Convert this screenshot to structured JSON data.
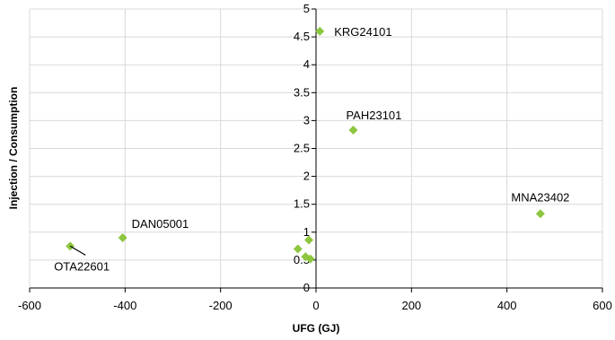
{
  "chart_data": {
    "type": "scatter",
    "title": "",
    "xlabel": "UFG (GJ)",
    "ylabel": "Injection / Consumption",
    "xlim": [
      -600,
      600
    ],
    "ylim": [
      0,
      5
    ],
    "x_ticks": [
      -600,
      -400,
      -200,
      0,
      200,
      400,
      600
    ],
    "y_ticks": [
      0,
      0.5,
      1,
      1.5,
      2,
      2.5,
      3,
      3.5,
      4,
      4.5,
      5
    ],
    "x_tick_labels": [
      "-600",
      "-400",
      "-200",
      "0",
      "200",
      "400",
      "600"
    ],
    "y_tick_labels": [
      "0",
      "0.5",
      "1",
      "1.5",
      "2",
      "2.5",
      "3",
      "3.5",
      "4",
      "4.5",
      "5"
    ],
    "grid": true,
    "legend": "none",
    "marker": "diamond",
    "marker_color": "#8dc63f",
    "points": [
      {
        "x": 8,
        "y": 4.6,
        "label": "KRG24101"
      },
      {
        "x": 78,
        "y": 2.83,
        "label": "PAH23101"
      },
      {
        "x": 470,
        "y": 1.33,
        "label": "MNA23402"
      },
      {
        "x": -405,
        "y": 0.9,
        "label": "DAN05001"
      },
      {
        "x": -515,
        "y": 0.75,
        "label": "OTA22601"
      },
      {
        "x": -38,
        "y": 0.7,
        "label": ""
      },
      {
        "x": -15,
        "y": 0.86,
        "label": ""
      },
      {
        "x": -22,
        "y": 0.56,
        "label": ""
      },
      {
        "x": -12,
        "y": 0.52,
        "label": ""
      }
    ]
  }
}
